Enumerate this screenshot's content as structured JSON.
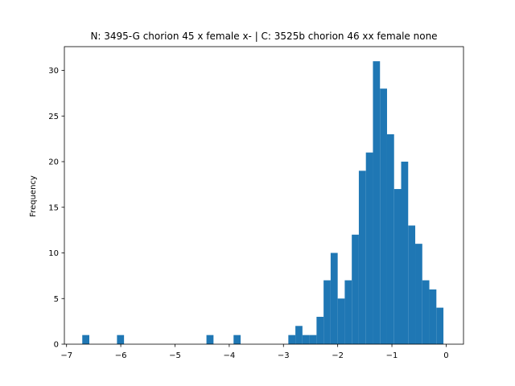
{
  "chart_data": {
    "type": "bar",
    "title": "N: 3495-G chorion 45 x female x- | C: 3525b chorion 46 xx female none",
    "xlabel": "",
    "ylabel": "Frequency",
    "xlim": [
      -7.04,
      0.32
    ],
    "ylim": [
      0,
      32.6
    ],
    "x_ticks": [
      -7,
      -6,
      -5,
      -4,
      -3,
      -2,
      -1,
      0
    ],
    "x_tick_labels": [
      "−7",
      "−6",
      "−5",
      "−4",
      "−3",
      "−2",
      "−1",
      "0"
    ],
    "y_ticks": [
      0,
      5,
      10,
      15,
      20,
      25,
      30
    ],
    "y_tick_labels": [
      "0",
      "5",
      "10",
      "15",
      "20",
      "25",
      "30"
    ],
    "bar_color": "#1f77b4",
    "grid": false,
    "legend": "none",
    "bins": [
      {
        "x0": -6.71,
        "x1": -6.58,
        "count": 1
      },
      {
        "x0": -6.07,
        "x1": -5.94,
        "count": 1
      },
      {
        "x0": -4.42,
        "x1": -4.29,
        "count": 1
      },
      {
        "x0": -3.92,
        "x1": -3.79,
        "count": 1
      },
      {
        "x0": -2.91,
        "x1": -2.78,
        "count": 1
      },
      {
        "x0": -2.78,
        "x1": -2.65,
        "count": 2
      },
      {
        "x0": -2.65,
        "x1": -2.52,
        "count": 1
      },
      {
        "x0": -2.52,
        "x1": -2.39,
        "count": 1
      },
      {
        "x0": -2.39,
        "x1": -2.26,
        "count": 3
      },
      {
        "x0": -2.26,
        "x1": -2.13,
        "count": 7
      },
      {
        "x0": -2.13,
        "x1": -2.0,
        "count": 10
      },
      {
        "x0": -2.0,
        "x1": -1.87,
        "count": 5
      },
      {
        "x0": -1.87,
        "x1": -1.74,
        "count": 7
      },
      {
        "x0": -1.74,
        "x1": -1.61,
        "count": 12
      },
      {
        "x0": -1.61,
        "x1": -1.48,
        "count": 19
      },
      {
        "x0": -1.48,
        "x1": -1.35,
        "count": 21
      },
      {
        "x0": -1.35,
        "x1": -1.22,
        "count": 31
      },
      {
        "x0": -1.22,
        "x1": -1.09,
        "count": 28
      },
      {
        "x0": -1.09,
        "x1": -0.96,
        "count": 23
      },
      {
        "x0": -0.96,
        "x1": -0.83,
        "count": 17
      },
      {
        "x0": -0.83,
        "x1": -0.7,
        "count": 20
      },
      {
        "x0": -0.7,
        "x1": -0.57,
        "count": 13
      },
      {
        "x0": -0.57,
        "x1": -0.44,
        "count": 11
      },
      {
        "x0": -0.44,
        "x1": -0.31,
        "count": 7
      },
      {
        "x0": -0.31,
        "x1": -0.18,
        "count": 6
      },
      {
        "x0": -0.18,
        "x1": -0.05,
        "count": 4
      }
    ]
  }
}
